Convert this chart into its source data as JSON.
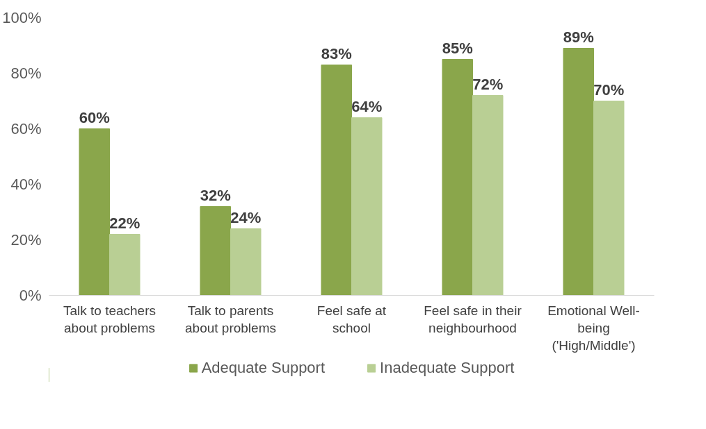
{
  "chart_data": {
    "type": "bar",
    "categories": [
      "Talk to teachers\nabout problems",
      "Talk to parents\nabout problems",
      "Feel safe at\nschool",
      "Feel safe in their\nneighbourhood",
      "Emotional Well-\nbeing\n('High/Middle')"
    ],
    "series": [
      {
        "name": "Adequate Support",
        "color": "#8aa64b",
        "values": [
          60,
          32,
          83,
          85,
          89
        ],
        "value_labels": [
          "60%",
          "32%",
          "83%",
          "85%",
          "89%"
        ]
      },
      {
        "name": "Inadequate Support",
        "color": "#b9cf94",
        "values": [
          22,
          24,
          64,
          72,
          70
        ],
        "value_labels": [
          "22%",
          "24%",
          "64%",
          "72%",
          "70%"
        ]
      }
    ],
    "ylim": [
      0,
      100
    ],
    "yticks": [
      {
        "value": 0,
        "label": "0%"
      },
      {
        "value": 20,
        "label": "20%"
      },
      {
        "value": 40,
        "label": "40%"
      },
      {
        "value": 60,
        "label": "60%"
      },
      {
        "value": 80,
        "label": "80%"
      },
      {
        "value": 100,
        "label": "100%"
      }
    ],
    "grid": false,
    "legend": "bottom"
  }
}
